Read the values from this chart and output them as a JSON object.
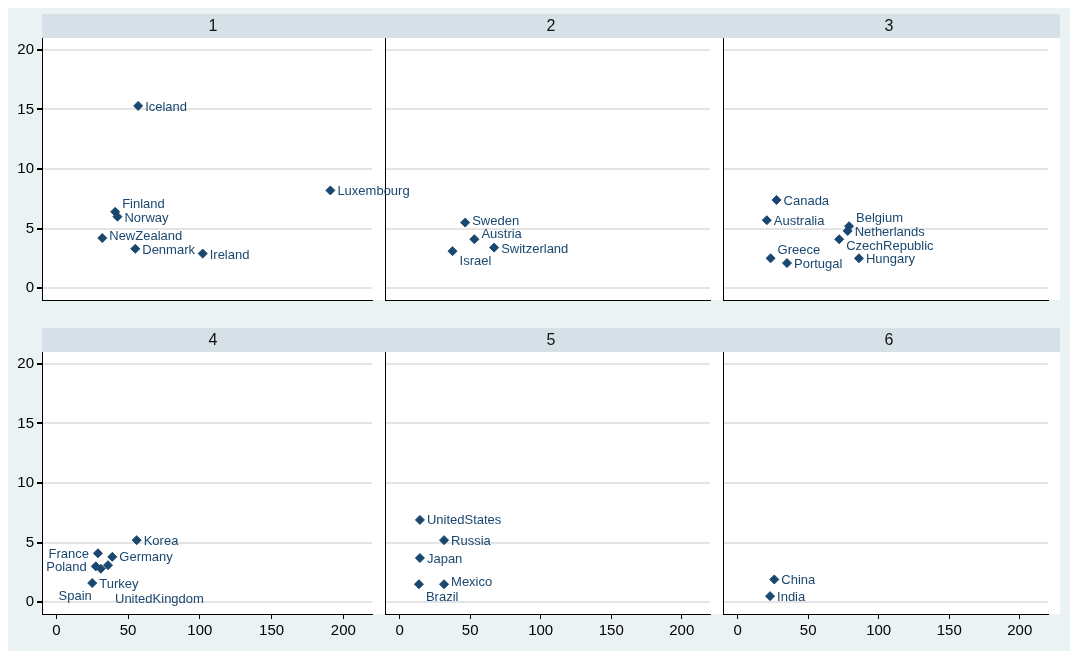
{
  "chart_data": [
    {
      "type": "scatter",
      "title": "1",
      "xlim": [
        -10,
        220
      ],
      "ylim": [
        -1,
        21
      ],
      "xticks": [
        0,
        50,
        100,
        150,
        200
      ],
      "yticks": [
        0,
        5,
        10,
        15,
        20
      ],
      "tick_labels": "y",
      "grid": "y",
      "marker": "diamond",
      "series": [
        {
          "color": "#1a476f",
          "x": [
            57,
            191,
            41,
            42.6,
            32,
            55,
            102
          ],
          "values": [
            15.3,
            8.2,
            6.4,
            6.0,
            4.2,
            3.3,
            2.9
          ],
          "value_labels": [
            "Iceland",
            "Luxembourg",
            "Finland",
            "Norway",
            "NewZealand",
            "Denmark",
            "Ireland"
          ]
        }
      ]
    },
    {
      "type": "scatter",
      "title": "2",
      "xlim": [
        -10,
        220
      ],
      "ylim": [
        -1,
        21
      ],
      "xticks": [
        0,
        50,
        100,
        150,
        200
      ],
      "yticks": [
        0,
        5,
        10,
        15,
        20
      ],
      "tick_labels": false,
      "grid": "y",
      "marker": "diamond",
      "series": [
        {
          "color": "#1a476f",
          "x": [
            46.5,
            53,
            37.5,
            67
          ],
          "values": [
            5.5,
            4.1,
            3.1,
            3.4
          ],
          "value_labels": [
            "Sweden",
            "Austria",
            "Israel",
            "Switzerland"
          ]
        }
      ]
    },
    {
      "type": "scatter",
      "title": "3",
      "xlim": [
        -10,
        220
      ],
      "ylim": [
        -1,
        21
      ],
      "xticks": [
        0,
        50,
        100,
        150,
        200
      ],
      "yticks": [
        0,
        5,
        10,
        15,
        20
      ],
      "tick_labels": false,
      "grid": "y",
      "marker": "diamond",
      "series": [
        {
          "color": "#1a476f",
          "x": [
            27.6,
            20.7,
            79,
            78,
            72,
            23.4,
            35,
            86
          ],
          "values": [
            7.4,
            5.7,
            5.2,
            4.8,
            4.1,
            2.5,
            2.1,
            2.5
          ],
          "value_labels": [
            "Canada",
            "Australia",
            "Belgium",
            "Netherlands",
            "CzechRepublic",
            "Greece",
            "Portugal",
            "Hungary"
          ]
        }
      ]
    },
    {
      "type": "scatter",
      "title": "4",
      "xlim": [
        -10,
        220
      ],
      "ylim": [
        -1,
        21
      ],
      "xticks": [
        0,
        50,
        100,
        150,
        200
      ],
      "yticks": [
        0,
        5,
        10,
        15,
        20
      ],
      "grid": "y",
      "marker": "diamond",
      "series": [
        {
          "color": "#1a476f",
          "x": [
            56,
            29,
            39,
            27.5,
            31,
            36,
            25
          ],
          "values": [
            5.2,
            4.1,
            3.8,
            3.0,
            2.8,
            3.1,
            1.6
          ],
          "value_labels": [
            "Korea",
            "France",
            "Germany",
            "Poland",
            "Spain",
            "UnitedKingdom",
            "Turkey"
          ]
        }
      ]
    },
    {
      "type": "scatter",
      "title": "5",
      "xlim": [
        -10,
        220
      ],
      "ylim": [
        -1,
        21
      ],
      "xticks": [
        0,
        50,
        100,
        150,
        200
      ],
      "yticks": [
        0,
        5,
        10,
        15,
        20
      ],
      "tick_labels": "x",
      "grid": "y",
      "marker": "diamond",
      "series": [
        {
          "color": "#1a476f",
          "x": [
            14.4,
            31.5,
            14.4,
            13.7,
            31.5
          ],
          "values": [
            6.9,
            5.2,
            3.7,
            1.5,
            1.5
          ],
          "value_labels": [
            "UnitedStates",
            "Russia",
            "Japan",
            "Brazil",
            "Mexico"
          ]
        }
      ]
    },
    {
      "type": "scatter",
      "title": "6",
      "xlim": [
        -10,
        220
      ],
      "ylim": [
        -1,
        21
      ],
      "xticks": [
        0,
        50,
        100,
        150,
        200
      ],
      "yticks": [
        0,
        5,
        10,
        15,
        20
      ],
      "tick_labels": "x",
      "grid": "y",
      "marker": "diamond",
      "series": [
        {
          "color": "#1a476f",
          "x": [
            26,
            23
          ],
          "values": [
            1.9,
            0.5
          ],
          "value_labels": [
            "China",
            "India"
          ]
        }
      ]
    }
  ]
}
